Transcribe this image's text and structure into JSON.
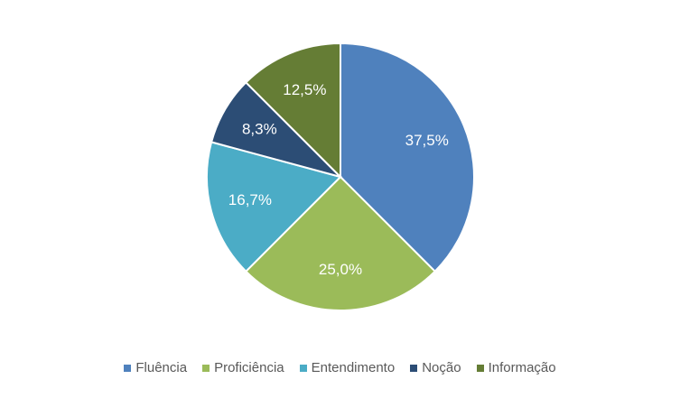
{
  "chart_data": {
    "type": "pie",
    "categories": [
      "Fluência",
      "Proficiência",
      "Entendimento",
      "Noção",
      "Informação"
    ],
    "values": [
      37.5,
      25.0,
      16.7,
      8.3,
      12.5
    ],
    "value_labels": [
      "37,5%",
      "25,0%",
      "16,7%",
      "8,3%",
      "12,5%"
    ],
    "colors": [
      "#4f81bd",
      "#9bbb59",
      "#4bacc6",
      "#2c4d75",
      "#657d35"
    ],
    "legend": "bottom"
  }
}
